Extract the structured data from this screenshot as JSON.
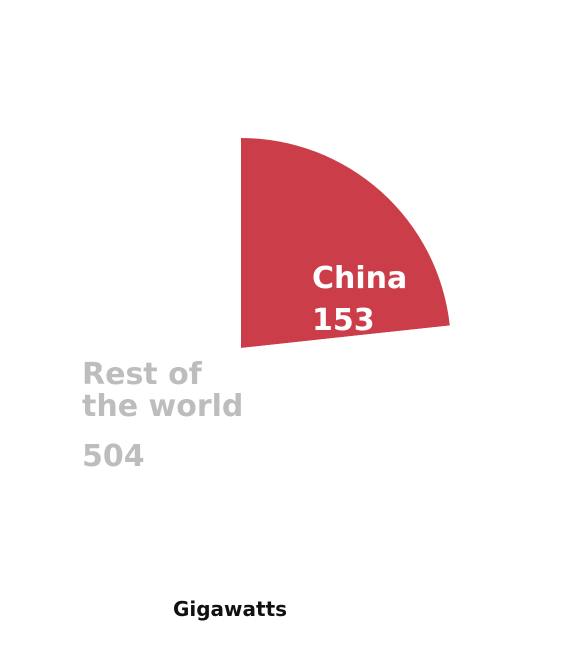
{
  "chart_data": {
    "type": "pie",
    "categories": [
      "China",
      "Rest of the world"
    ],
    "values": [
      153,
      504
    ],
    "label_lines": [
      [
        "China"
      ],
      [
        "Rest of",
        "the world"
      ]
    ],
    "colors": [
      "#cc3d4a",
      "#ffffff"
    ],
    "label_colors": [
      "#ffffff",
      "#bdbdbd"
    ],
    "unit_label": "Gigawatts",
    "unit_color": "#111111"
  }
}
